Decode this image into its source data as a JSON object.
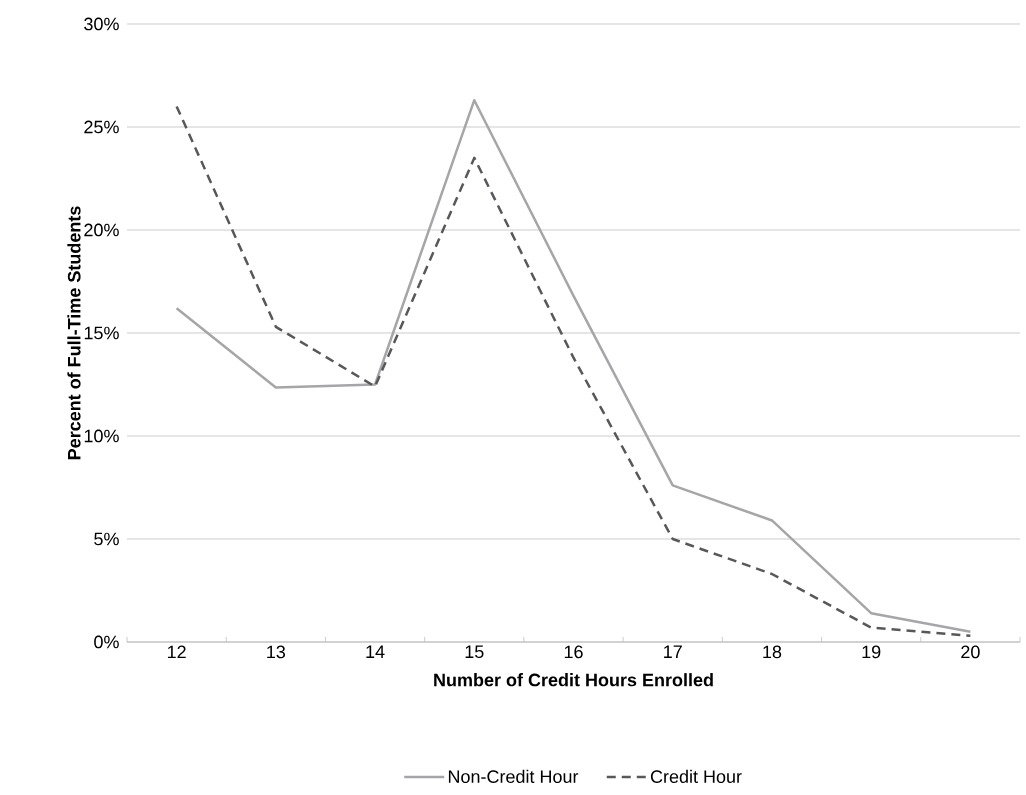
{
  "chart_data": {
    "type": "line",
    "xlabel": "Number of Credit Hours Enrolled",
    "ylabel": "Percent of Full-Time Students",
    "categories": [
      "12",
      "13",
      "14",
      "15",
      "16",
      "17",
      "18",
      "19",
      "20"
    ],
    "series": [
      {
        "name": "Non-Credit Hour",
        "color": "#a6a6a8",
        "line_style": "solid",
        "values": [
          16.2,
          12.35,
          12.5,
          26.3,
          16.8,
          7.6,
          5.9,
          1.4,
          0.5
        ]
      },
      {
        "name": "Credit Hour",
        "color": "#58585a",
        "line_style": "dashed",
        "values": [
          26.0,
          15.3,
          12.4,
          23.5,
          13.8,
          5.0,
          3.3,
          0.7,
          0.3
        ]
      }
    ],
    "ylim": [
      0,
      30
    ],
    "yticks": [
      {
        "value": 0,
        "label": "0%"
      },
      {
        "value": 5,
        "label": "5%"
      },
      {
        "value": 10,
        "label": "10%"
      },
      {
        "value": 15,
        "label": "15%"
      },
      {
        "value": 20,
        "label": "20%"
      },
      {
        "value": 25,
        "label": "25%"
      },
      {
        "value": 30,
        "label": "30%"
      }
    ],
    "grid": "y",
    "legend": "bottom",
    "marker": "none"
  }
}
